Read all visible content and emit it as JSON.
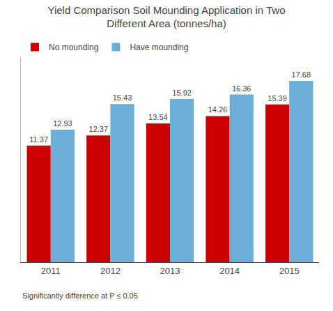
{
  "chart_data": {
    "type": "bar",
    "title": "Yield Comparison Soil Mounding Application in Two\nDifferent Area (tonnes/ha)",
    "categories": [
      "2011",
      "2012",
      "2013",
      "2014",
      "2015"
    ],
    "series": [
      {
        "name": "No mounding",
        "color": "#cc0000",
        "values": [
          11.37,
          12.37,
          13.54,
          14.26,
          15.39
        ]
      },
      {
        "name": "Have mounding",
        "color": "#6baed6",
        "values": [
          12.93,
          15.43,
          15.92,
          16.36,
          17.68
        ]
      }
    ],
    "ylim": [
      0,
      20
    ],
    "grid": false,
    "legend": "upper left",
    "data_labels": true,
    "tick_labels": "x",
    "annotations": [
      "Significantly difference at P ≤ 0.05"
    ]
  }
}
